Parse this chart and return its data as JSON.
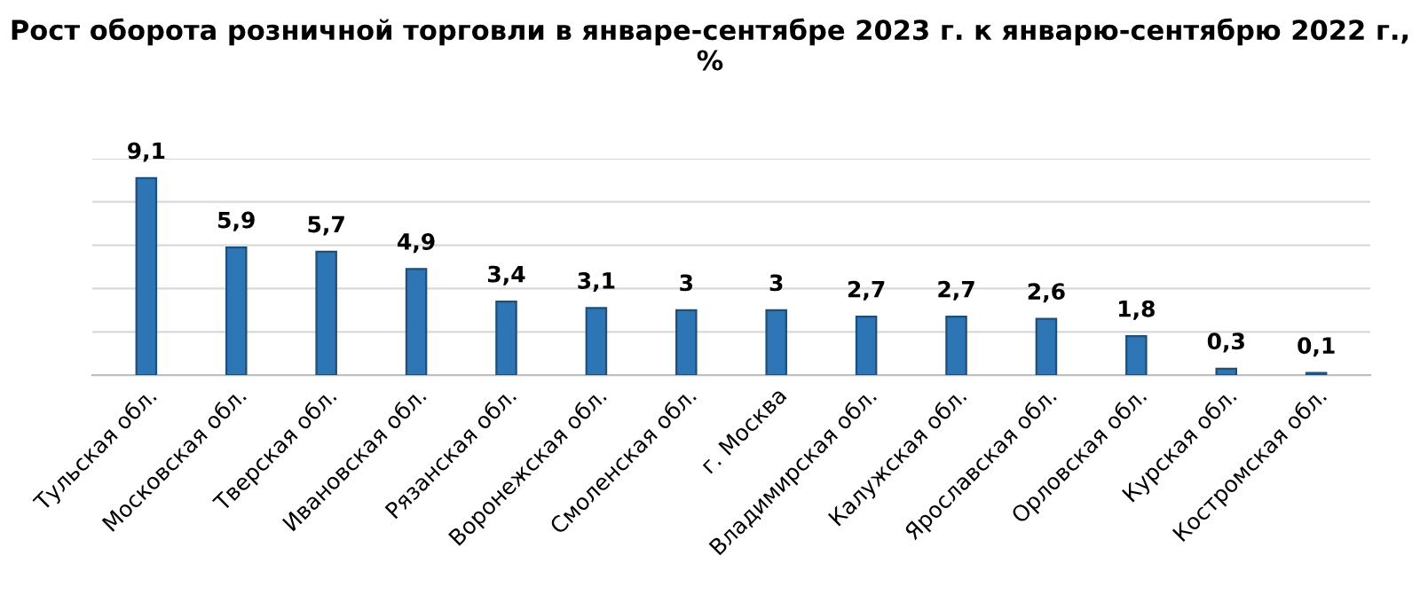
{
  "chart_data": {
    "type": "bar",
    "title": "Рост оборота розничной торговли в январе-сентябре 2023 г. к январю-сентябрю 2022 г., %",
    "categories": [
      "Тульская обл.",
      "Московская обл.",
      "Тверская обл.",
      "Ивановская обл.",
      "Рязанская обл.",
      "Воронежская обл.",
      "Смоленская обл.",
      "г. Москва",
      "Владимирская обл.",
      "Калужская обл.",
      "Ярославская обл.",
      "Орловская обл.",
      "Курская обл.",
      "Костромская обл."
    ],
    "values": [
      9.1,
      5.9,
      5.7,
      4.9,
      3.4,
      3.1,
      3,
      3,
      2.7,
      2.7,
      2.6,
      1.8,
      0.3,
      0.1
    ],
    "value_labels": [
      "9,1",
      "5,9",
      "5,7",
      "4,9",
      "3,4",
      "3,1",
      "3",
      "3",
      "2,7",
      "2,7",
      "2,6",
      "1,8",
      "0,3",
      "0,1"
    ],
    "color": "#2e75b6",
    "ylim": [
      0,
      10
    ],
    "yticks": [
      {
        "value": 0,
        "label": null
      },
      {
        "value": 2,
        "label": null
      },
      {
        "value": 4,
        "label": null
      },
      {
        "value": 6,
        "label": null
      },
      {
        "value": 8,
        "label": null
      },
      {
        "value": 10,
        "label": null
      }
    ],
    "tick_labels": "x",
    "grid": "y"
  }
}
